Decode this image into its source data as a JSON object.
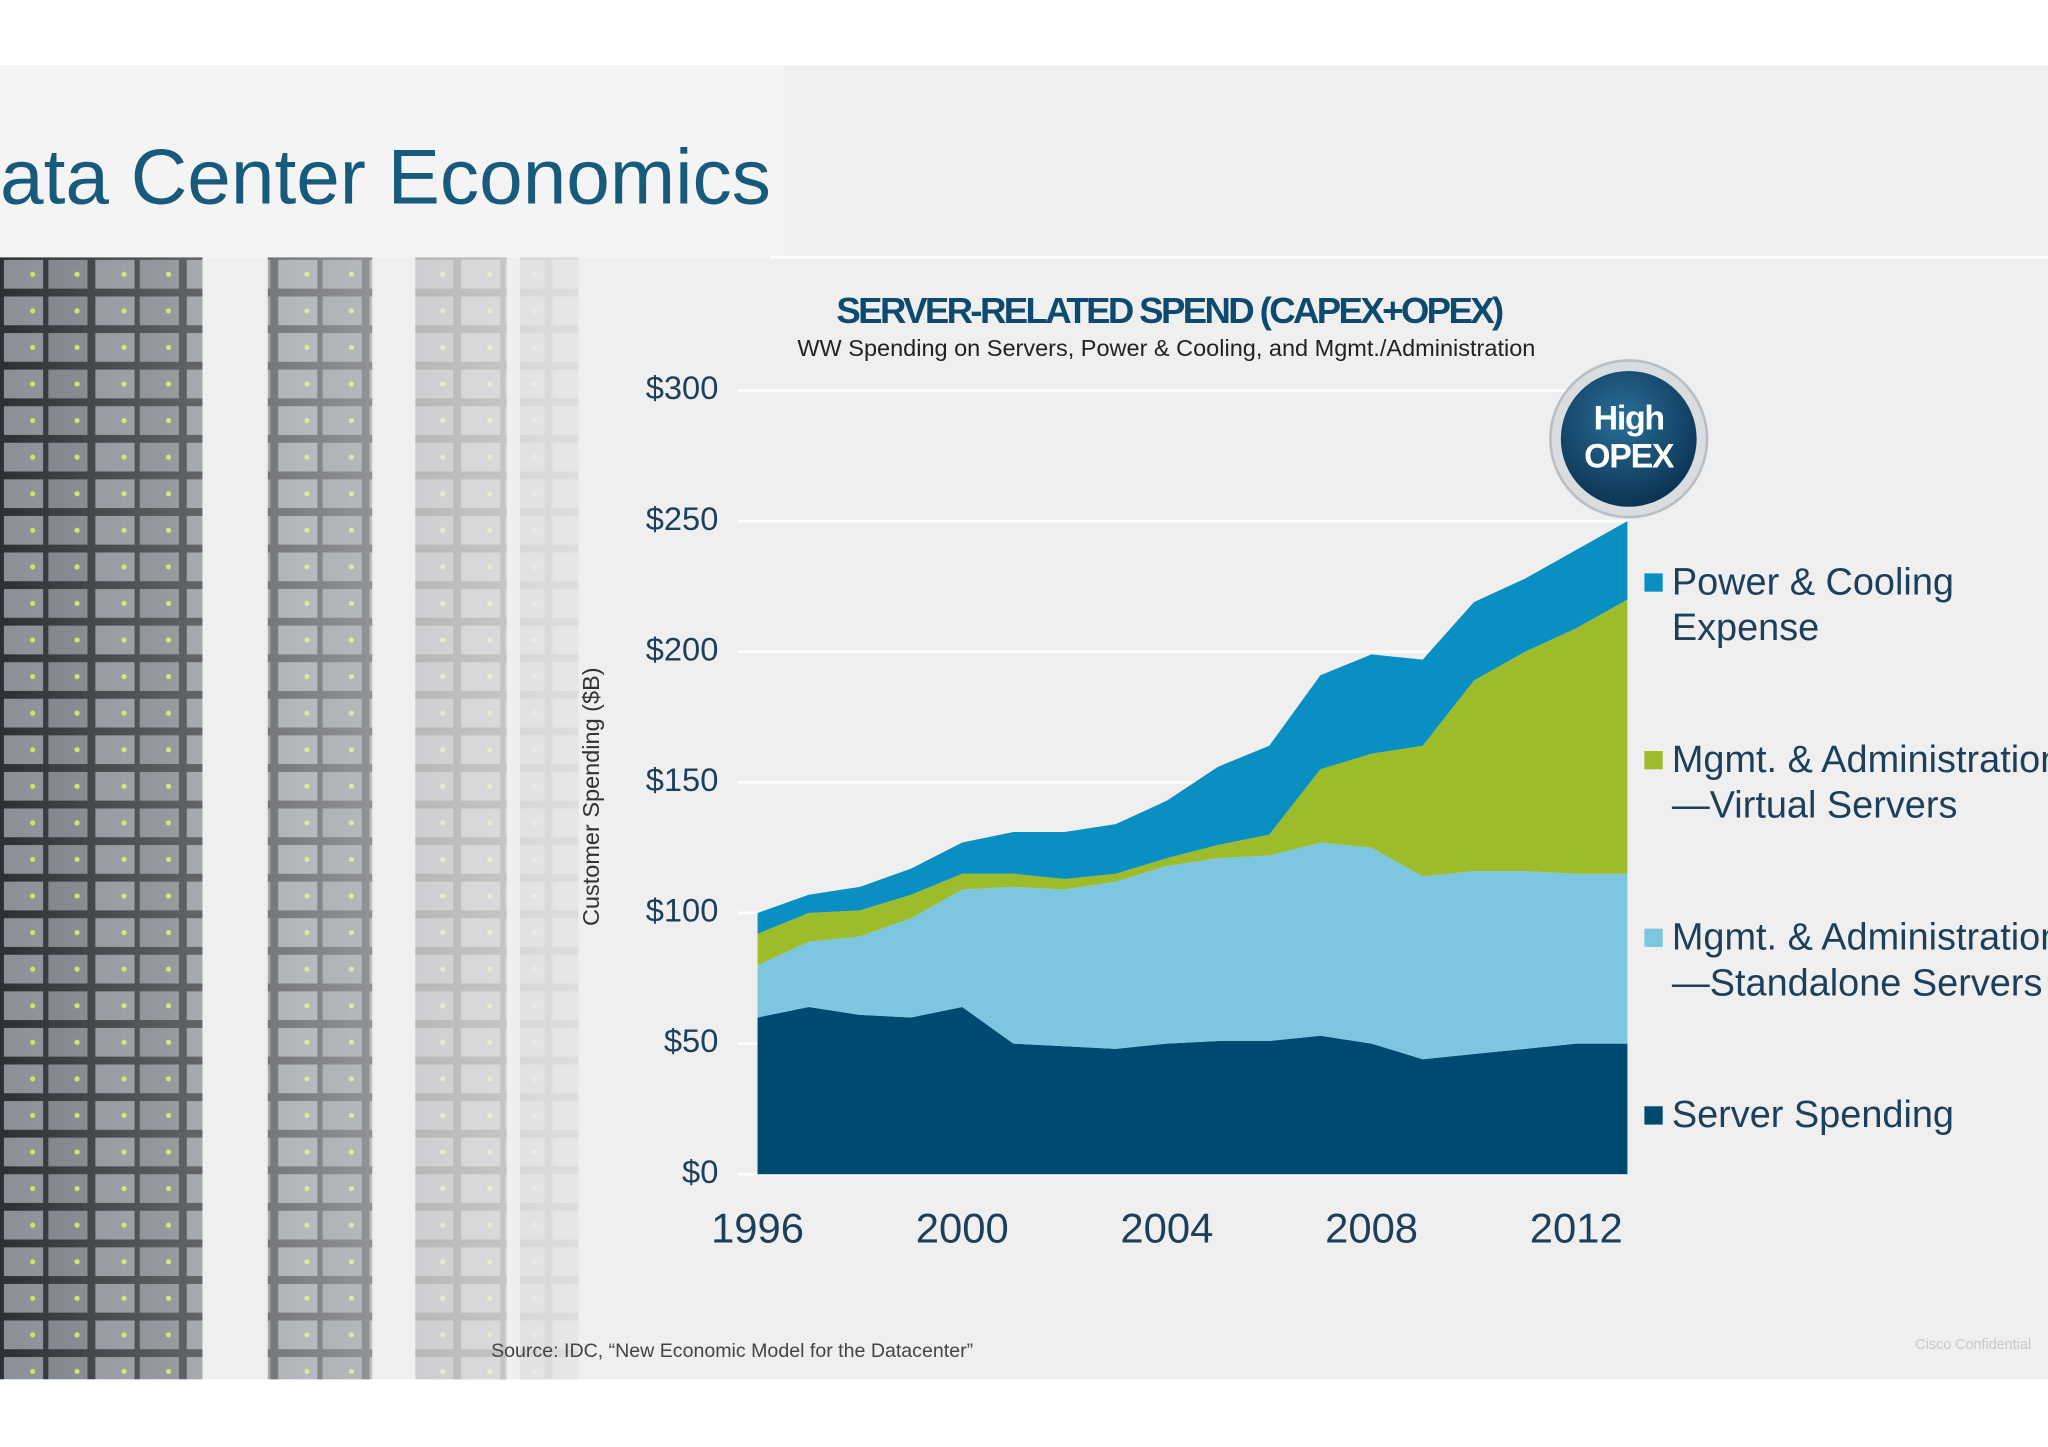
{
  "slide_title": "ata Center Economics",
  "source": "Source: IDC, “New Economic Model for the Datacenter”",
  "footer": "Cisco Confidential",
  "chart_data": {
    "type": "stacked_area",
    "title": "SERVER-RELATED SPEND (CAPEX+OPEX)",
    "subtitle": "WW Spending on Servers, Power & Cooling, and Mgmt./Administration",
    "y_label": "Customer Spending ($B)",
    "annotation": "High\nOPEX",
    "x": [
      1996,
      1997,
      1998,
      1999,
      2000,
      2001,
      2002,
      2003,
      2004,
      2005,
      2006,
      2007,
      2008,
      2009,
      2010,
      2011,
      2012,
      2013
    ],
    "xlim": [
      1996,
      2013
    ],
    "xticks": [
      1996,
      2000,
      2004,
      2008,
      2012
    ],
    "ylim": [
      0,
      300
    ],
    "yticks": [
      {
        "value": 0,
        "label": "$0"
      },
      {
        "value": 50,
        "label": "$50"
      },
      {
        "value": 100,
        "label": "$100"
      },
      {
        "value": 150,
        "label": "$150"
      },
      {
        "value": 200,
        "label": "$200"
      },
      {
        "value": 250,
        "label": "$250"
      },
      {
        "value": 300,
        "label": "$300"
      }
    ],
    "grid": true,
    "series": [
      {
        "name": "Server Spending",
        "color": "#004a72",
        "values": [
          60,
          64,
          61,
          60,
          64,
          50,
          49,
          48,
          50,
          51,
          51,
          53,
          50,
          44,
          46,
          48,
          50,
          50
        ]
      },
      {
        "name": "Mgmt. & Administration\n—Standalone Servers",
        "color": "#7cc6e0",
        "values": [
          20,
          25,
          30,
          38,
          45,
          60,
          60,
          64,
          68,
          70,
          71,
          74,
          75,
          70,
          70,
          68,
          65,
          65
        ]
      },
      {
        "name": "Mgmt. & Administration\n—Virtual Servers",
        "color": "#9cbc2c",
        "values": [
          12,
          11,
          10,
          9,
          6,
          5,
          4,
          3,
          3,
          5,
          8,
          28,
          36,
          50,
          73,
          84,
          94,
          105
        ]
      },
      {
        "name": "Power & Cooling\nExpense",
        "color": "#0a8fc2",
        "values": [
          8,
          7,
          9,
          10,
          12,
          16,
          18,
          19,
          22,
          30,
          34,
          36,
          38,
          33,
          30,
          28,
          30,
          30
        ]
      }
    ]
  }
}
